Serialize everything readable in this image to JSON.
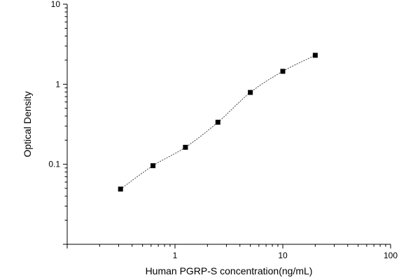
{
  "chart_data": {
    "type": "scatter",
    "title": "",
    "xlabel": "Human PGRP-S concentration(ng/mL)",
    "ylabel": "Optical Density",
    "xscale": "log",
    "yscale": "log",
    "xlim": [
      0.1,
      100
    ],
    "ylim": [
      0.01,
      10
    ],
    "x_ticks": [
      {
        "value": 1,
        "label": "1"
      },
      {
        "value": 10,
        "label": "10"
      },
      {
        "value": 100,
        "label": "100"
      }
    ],
    "y_ticks": [
      {
        "value": 0.1,
        "label": "0.1"
      },
      {
        "value": 1,
        "label": "1"
      },
      {
        "value": 10,
        "label": "10"
      }
    ],
    "series": [
      {
        "x": [
          0.3125,
          0.625,
          1.25,
          2.5,
          5,
          10,
          20
        ],
        "y": [
          0.049,
          0.096,
          0.163,
          0.335,
          0.79,
          1.45,
          2.3
        ]
      }
    ],
    "fit_curve": true,
    "grid": false,
    "legend": "none",
    "colors": {
      "marker": "#000000",
      "curve": "#333333",
      "axis": "#000000"
    }
  }
}
